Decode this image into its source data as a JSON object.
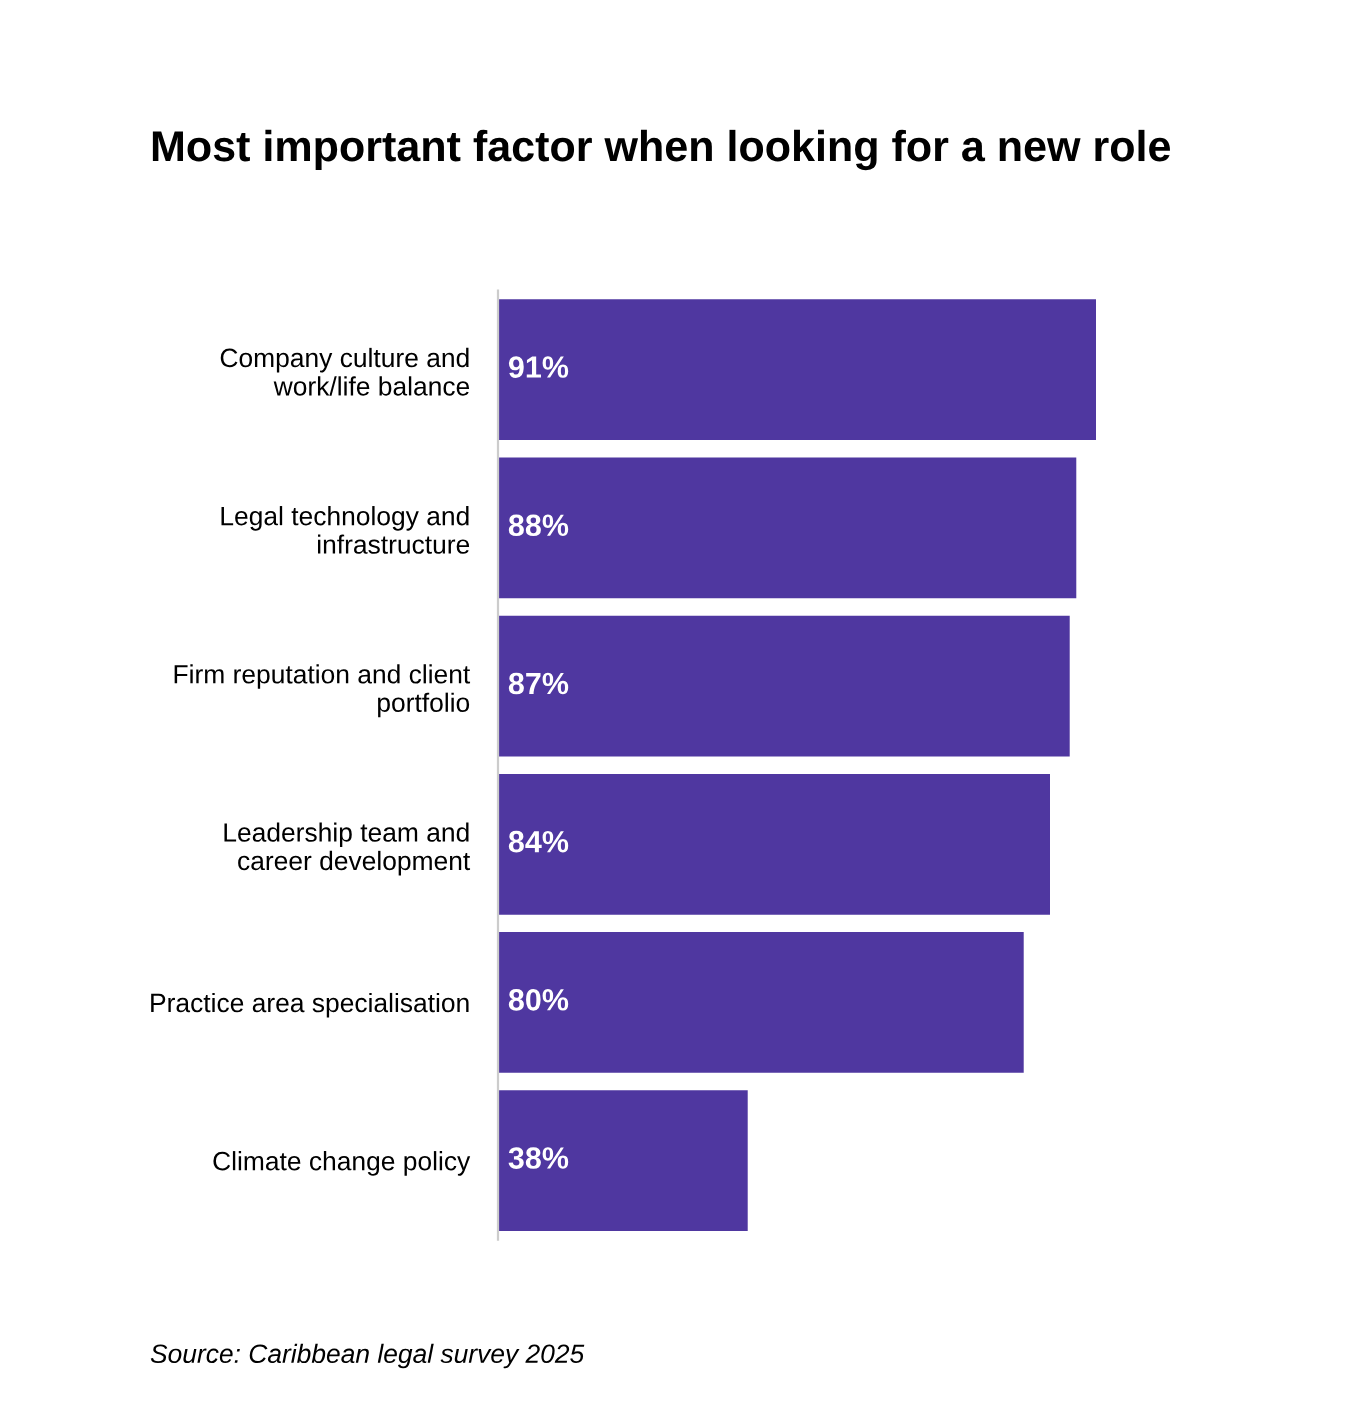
{
  "chart_data": {
    "type": "bar",
    "orientation": "horizontal",
    "title": "Most important factor when looking for a new role",
    "categories": [
      "Company culture and\nwork/life balance",
      "Legal technology and\ninfrastructure",
      "Firm reputation and client\nportfolio",
      "Leadership team and\ncareer development",
      "Practice area specialisation",
      "Climate change policy"
    ],
    "values": [
      91,
      88,
      87,
      84,
      80,
      38
    ],
    "value_labels": [
      "91%",
      "88%",
      "87%",
      "84%",
      "80%",
      "38%"
    ],
    "color": "#4f37a0",
    "tick_labels": "y",
    "grid": false,
    "legend": false,
    "annotations": [
      "Source: Caribbean legal survey 2025"
    ]
  }
}
